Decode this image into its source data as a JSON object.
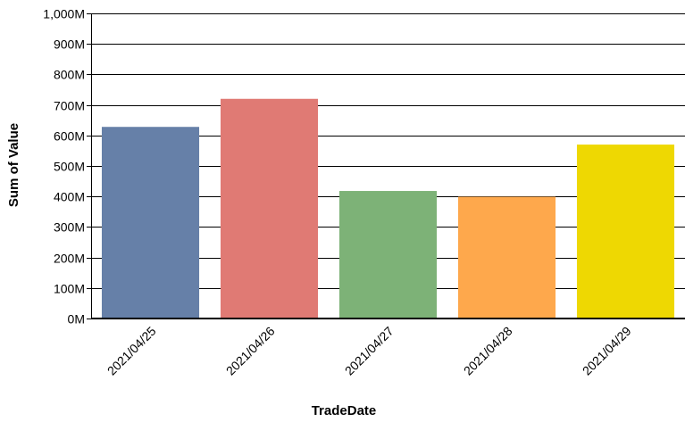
{
  "chart_data": {
    "type": "bar",
    "title": "",
    "xlabel": "TradeDate",
    "ylabel": "Sum of Value",
    "categories": [
      "2021/04/25",
      "2021/04/26",
      "2021/04/27",
      "2021/04/28",
      "2021/04/29"
    ],
    "values": [
      628000000,
      720000000,
      418000000,
      399000000,
      570000000
    ],
    "bar_colors": [
      "#6680a8",
      "#e07a74",
      "#7db277",
      "#fea84c",
      "#eed802"
    ],
    "ylim": [
      0,
      1000000000
    ],
    "yticks": [
      0,
      100000000,
      200000000,
      300000000,
      400000000,
      500000000,
      600000000,
      700000000,
      800000000,
      900000000,
      1000000000
    ],
    "ytick_labels": [
      "0M",
      "100M",
      "200M",
      "300M",
      "400M",
      "500M",
      "600M",
      "700M",
      "800M",
      "900M",
      "1,000M"
    ],
    "grid": true,
    "legend": "none"
  }
}
